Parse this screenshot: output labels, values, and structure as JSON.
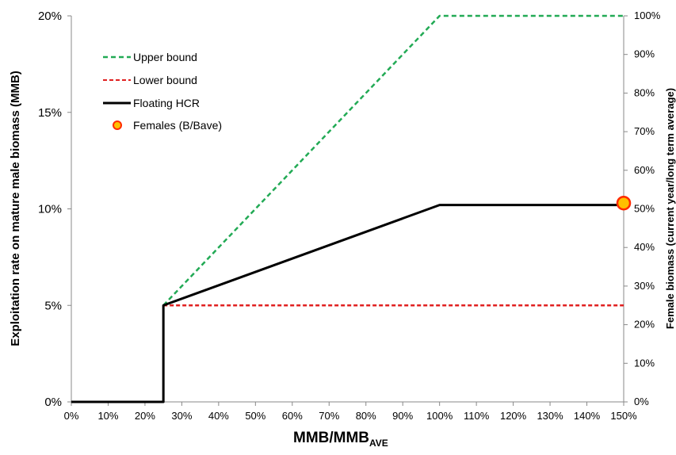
{
  "chart_data": {
    "type": "line",
    "xlabel": "MMB/MMB",
    "xlabel_sub": "AVE",
    "ylabel": "Exploitation rate on mature male biomass (MMB)",
    "ylabel_right": "Female biomass (current year/long term average)",
    "x_ticks": [
      "0%",
      "10%",
      "20%",
      "30%",
      "40%",
      "50%",
      "60%",
      "70%",
      "80%",
      "90%",
      "100%",
      "110%",
      "120%",
      "130%",
      "140%",
      "150%"
    ],
    "y_ticks": [
      "0%",
      "5%",
      "10%",
      "15%",
      "20%"
    ],
    "y2_ticks": [
      "0%",
      "10%",
      "20%",
      "30%",
      "40%",
      "50%",
      "60%",
      "70%",
      "80%",
      "90%",
      "100%"
    ],
    "xlim": [
      0,
      150
    ],
    "ylim": [
      0,
      20
    ],
    "y2lim": [
      0,
      100
    ],
    "grid": false,
    "legend_position": "top-left",
    "series": [
      {
        "name": "Upper bound",
        "style": "dashed",
        "color": "#22aa55",
        "x": [
          25,
          100,
          150
        ],
        "y": [
          5,
          20,
          20
        ]
      },
      {
        "name": "Lower bound",
        "style": "dashed",
        "color": "#e02020",
        "x": [
          25,
          150
        ],
        "y": [
          5,
          5
        ]
      },
      {
        "name": "Floating HCR",
        "style": "solid",
        "color": "#000000",
        "x": [
          0,
          25,
          25,
          100,
          150
        ],
        "y": [
          0,
          0,
          5,
          10.2,
          10.2
        ]
      },
      {
        "name": "Females (B/Bave)",
        "style": "marker",
        "color": "#ffc000",
        "edge_color": "#ff2a00",
        "axis": "right",
        "x": [
          150
        ],
        "y": [
          51.5
        ]
      }
    ]
  }
}
